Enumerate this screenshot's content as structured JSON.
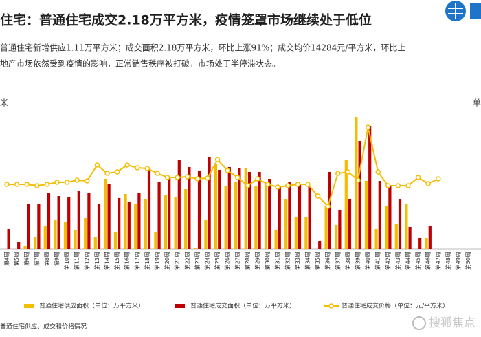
{
  "chart_data": {
    "type": "bar-line",
    "title": "住宅：普通住宅成交2.18万平方米，疫情笼罩市场继续处于低位",
    "subtitle": [
      "普通住宅新增供应1.11万平方米；成交面积2.18万平方米，环比上涨91%；成交均价14284元/平方米，环比上",
      "地产市场依然受到疫情的影响，正常销售秩序被打破，市场处于半停滞状态。"
    ],
    "y_axis_label": "米",
    "y2_axis_label": "单",
    "source": "普通住宅供应、成交和价格情况",
    "watermark": "搜狐焦点",
    "categories": [
      "第4周",
      "第5周",
      "第6周",
      "第7周",
      "第8周",
      "第9周",
      "第10周",
      "第11周",
      "第12周",
      "第13周",
      "第14周",
      "第15周",
      "第16周",
      "第17周",
      "第18周",
      "第19周",
      "第20周",
      "第21周",
      "第22周",
      "第23周",
      "第24周",
      "第25周",
      "第26周",
      "第27周",
      "第28周",
      "第29周",
      "第30周",
      "第31周",
      "第32周",
      "第33周",
      "第34周",
      "第35周",
      "第36周",
      "第37周",
      "第38周",
      "第39周",
      "第40周",
      "第41周",
      "第42周",
      "第43周",
      "第44周",
      "第45周",
      "第46周",
      "第47周",
      "第48周",
      "第49周",
      "第50周"
    ],
    "ylim": [
      0,
      212
    ],
    "y2lim": [
      0,
      212
    ],
    "series": [
      {
        "name": "普通住宅供应面积（单位：万平方米）",
        "color": "#f5bd00",
        "kind": "bar",
        "values": [
          0,
          0,
          5,
          17,
          34,
          42,
          39,
          27,
          45,
          17,
          102,
          24,
          80,
          65,
          72,
          24,
          78,
          75,
          87,
          2,
          42,
          124,
          92,
          97,
          117,
          92,
          92,
          27,
          72,
          46,
          47,
          0,
          62,
          35,
          130,
          192,
          99,
          29,
          62,
          36,
          66,
          0,
          16,
          null,
          null,
          null,
          null
        ]
      },
      {
        "name": "普通住宅成交面积（单位：万平方米）",
        "color": "#c00000",
        "kind": "bar",
        "values": [
          29,
          10,
          66,
          66,
          82,
          77,
          76,
          84,
          82,
          66,
          94,
          74,
          69,
          82,
          117,
          97,
          105,
          130,
          119,
          114,
          134,
          115,
          119,
          118,
          112,
          112,
          102,
          92,
          97,
          94,
          92,
          12,
          112,
          57,
          72,
          157,
          179,
          99,
          92,
          72,
          32,
          16,
          34,
          null,
          null,
          null,
          null
        ]
      },
      {
        "name": "普通住宅成交价格（单位：元/平方米）",
        "color": "#f5bd00",
        "kind": "line",
        "axis": "y2",
        "values": [
          94,
          94,
          94,
          92,
          94,
          97,
          97,
          100,
          99,
          122,
          110,
          112,
          122,
          118,
          117,
          110,
          104,
          104,
          105,
          102,
          103,
          130,
          114,
          104,
          92,
          102,
          94,
          90,
          92,
          94,
          94,
          77,
          62,
          110,
          112,
          100,
          177,
          112,
          92,
          92,
          92,
          104,
          95,
          102,
          null,
          null,
          null
        ]
      }
    ]
  }
}
